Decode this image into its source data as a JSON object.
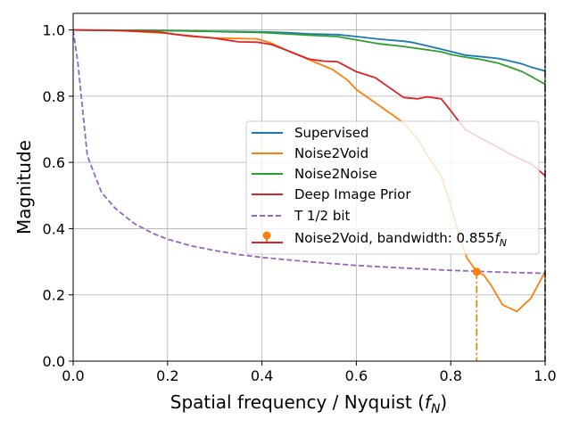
{
  "chart_data": {
    "type": "line",
    "xlabel": "Spatial frequency / Nyquist (",
    "xlabel_symbol": "f",
    "xlabel_subscript": "N",
    "xlabel_close": ")",
    "ylabel": "Magnitude",
    "xlim": [
      0.0,
      1.0
    ],
    "ylim": [
      0.0,
      1.05
    ],
    "grid": true,
    "legend_position": "center-right",
    "x_ticks": [
      0.0,
      0.2,
      0.4,
      0.6,
      0.8,
      1.0
    ],
    "x_tick_labels": [
      "0.0",
      "0.2",
      "0.4",
      "0.6",
      "0.8",
      "1.0"
    ],
    "y_ticks": [
      0.0,
      0.2,
      0.4,
      0.6,
      0.8,
      1.0
    ],
    "y_tick_labels": [
      "0.0",
      "0.2",
      "0.4",
      "0.6",
      "0.8",
      "1.0"
    ],
    "series": [
      {
        "name": "Supervised",
        "color": "#1f77b4",
        "style": "solid",
        "points": [
          [
            0.0,
            1.0
          ],
          [
            0.1,
            0.999
          ],
          [
            0.2,
            0.998
          ],
          [
            0.3,
            0.996
          ],
          [
            0.4,
            0.994
          ],
          [
            0.45,
            0.992
          ],
          [
            0.5,
            0.988
          ],
          [
            0.56,
            0.986
          ],
          [
            0.6,
            0.98
          ],
          [
            0.65,
            0.972
          ],
          [
            0.7,
            0.966
          ],
          [
            0.72,
            0.962
          ],
          [
            0.75,
            0.952
          ],
          [
            0.78,
            0.942
          ],
          [
            0.8,
            0.935
          ],
          [
            0.83,
            0.924
          ],
          [
            0.86,
            0.92
          ],
          [
            0.9,
            0.914
          ],
          [
            0.92,
            0.908
          ],
          [
            0.95,
            0.898
          ],
          [
            0.97,
            0.888
          ],
          [
            1.0,
            0.876
          ]
        ]
      },
      {
        "name": "Noise2Void",
        "color": "#ff7f0e",
        "style": "solid",
        "points": [
          [
            0.0,
            1.0
          ],
          [
            0.1,
            0.998
          ],
          [
            0.2,
            0.99
          ],
          [
            0.25,
            0.98
          ],
          [
            0.3,
            0.976
          ],
          [
            0.35,
            0.974
          ],
          [
            0.39,
            0.973
          ],
          [
            0.42,
            0.96
          ],
          [
            0.45,
            0.94
          ],
          [
            0.5,
            0.91
          ],
          [
            0.55,
            0.88
          ],
          [
            0.58,
            0.85
          ],
          [
            0.6,
            0.82
          ],
          [
            0.65,
            0.77
          ],
          [
            0.7,
            0.72
          ],
          [
            0.73,
            0.67
          ],
          [
            0.76,
            0.6
          ],
          [
            0.78,
            0.56
          ],
          [
            0.8,
            0.47
          ],
          [
            0.82,
            0.37
          ],
          [
            0.835,
            0.31
          ],
          [
            0.855,
            0.27
          ],
          [
            0.87,
            0.26
          ],
          [
            0.885,
            0.23
          ],
          [
            0.91,
            0.17
          ],
          [
            0.94,
            0.15
          ],
          [
            0.97,
            0.19
          ],
          [
            1.0,
            0.27
          ]
        ]
      },
      {
        "name": "Noise2Noise",
        "color": "#2ca02c",
        "style": "solid",
        "points": [
          [
            0.0,
            1.0
          ],
          [
            0.1,
            0.999
          ],
          [
            0.2,
            0.998
          ],
          [
            0.3,
            0.995
          ],
          [
            0.4,
            0.992
          ],
          [
            0.45,
            0.988
          ],
          [
            0.5,
            0.984
          ],
          [
            0.56,
            0.98
          ],
          [
            0.6,
            0.97
          ],
          [
            0.65,
            0.958
          ],
          [
            0.7,
            0.95
          ],
          [
            0.75,
            0.94
          ],
          [
            0.78,
            0.934
          ],
          [
            0.8,
            0.926
          ],
          [
            0.83,
            0.918
          ],
          [
            0.86,
            0.912
          ],
          [
            0.9,
            0.9
          ],
          [
            0.92,
            0.89
          ],
          [
            0.95,
            0.875
          ],
          [
            0.97,
            0.86
          ],
          [
            1.0,
            0.836
          ]
        ]
      },
      {
        "name": "Deep Image Prior",
        "color": "#d62728",
        "style": "solid",
        "points": [
          [
            0.0,
            1.0
          ],
          [
            0.1,
            0.998
          ],
          [
            0.18,
            0.994
          ],
          [
            0.22,
            0.986
          ],
          [
            0.3,
            0.975
          ],
          [
            0.35,
            0.964
          ],
          [
            0.39,
            0.963
          ],
          [
            0.42,
            0.956
          ],
          [
            0.45,
            0.94
          ],
          [
            0.5,
            0.912
          ],
          [
            0.53,
            0.906
          ],
          [
            0.56,
            0.904
          ],
          [
            0.6,
            0.874
          ],
          [
            0.64,
            0.856
          ],
          [
            0.67,
            0.826
          ],
          [
            0.7,
            0.796
          ],
          [
            0.73,
            0.792
          ],
          [
            0.75,
            0.798
          ],
          [
            0.78,
            0.792
          ],
          [
            0.8,
            0.756
          ],
          [
            0.83,
            0.7
          ],
          [
            0.86,
            0.676
          ],
          [
            0.9,
            0.646
          ],
          [
            0.93,
            0.622
          ],
          [
            0.96,
            0.602
          ],
          [
            0.97,
            0.596
          ],
          [
            1.0,
            0.56
          ]
        ]
      },
      {
        "name": "T 1/2 bit",
        "color": "#9467bd",
        "style": "dashed",
        "points": [
          [
            0.0,
            1.0
          ],
          [
            0.01,
            0.9
          ],
          [
            0.03,
            0.62
          ],
          [
            0.06,
            0.51
          ],
          [
            0.09,
            0.46
          ],
          [
            0.13,
            0.415
          ],
          [
            0.17,
            0.385
          ],
          [
            0.2,
            0.368
          ],
          [
            0.25,
            0.348
          ],
          [
            0.3,
            0.334
          ],
          [
            0.35,
            0.322
          ],
          [
            0.4,
            0.313
          ],
          [
            0.5,
            0.3
          ],
          [
            0.6,
            0.289
          ],
          [
            0.7,
            0.281
          ],
          [
            0.8,
            0.274
          ],
          [
            0.9,
            0.269
          ],
          [
            1.0,
            0.265
          ]
        ]
      }
    ],
    "bandwidth_marker": {
      "name": "Noise2Void, bandwidth: 0.855",
      "name_symbol": "f",
      "name_subscript": "N",
      "color": "#ff7f0e",
      "x": 0.855,
      "y": 0.27
    },
    "nyquist_line": {
      "x": 1.0,
      "color": "#000000",
      "style": "dashdot"
    }
  }
}
